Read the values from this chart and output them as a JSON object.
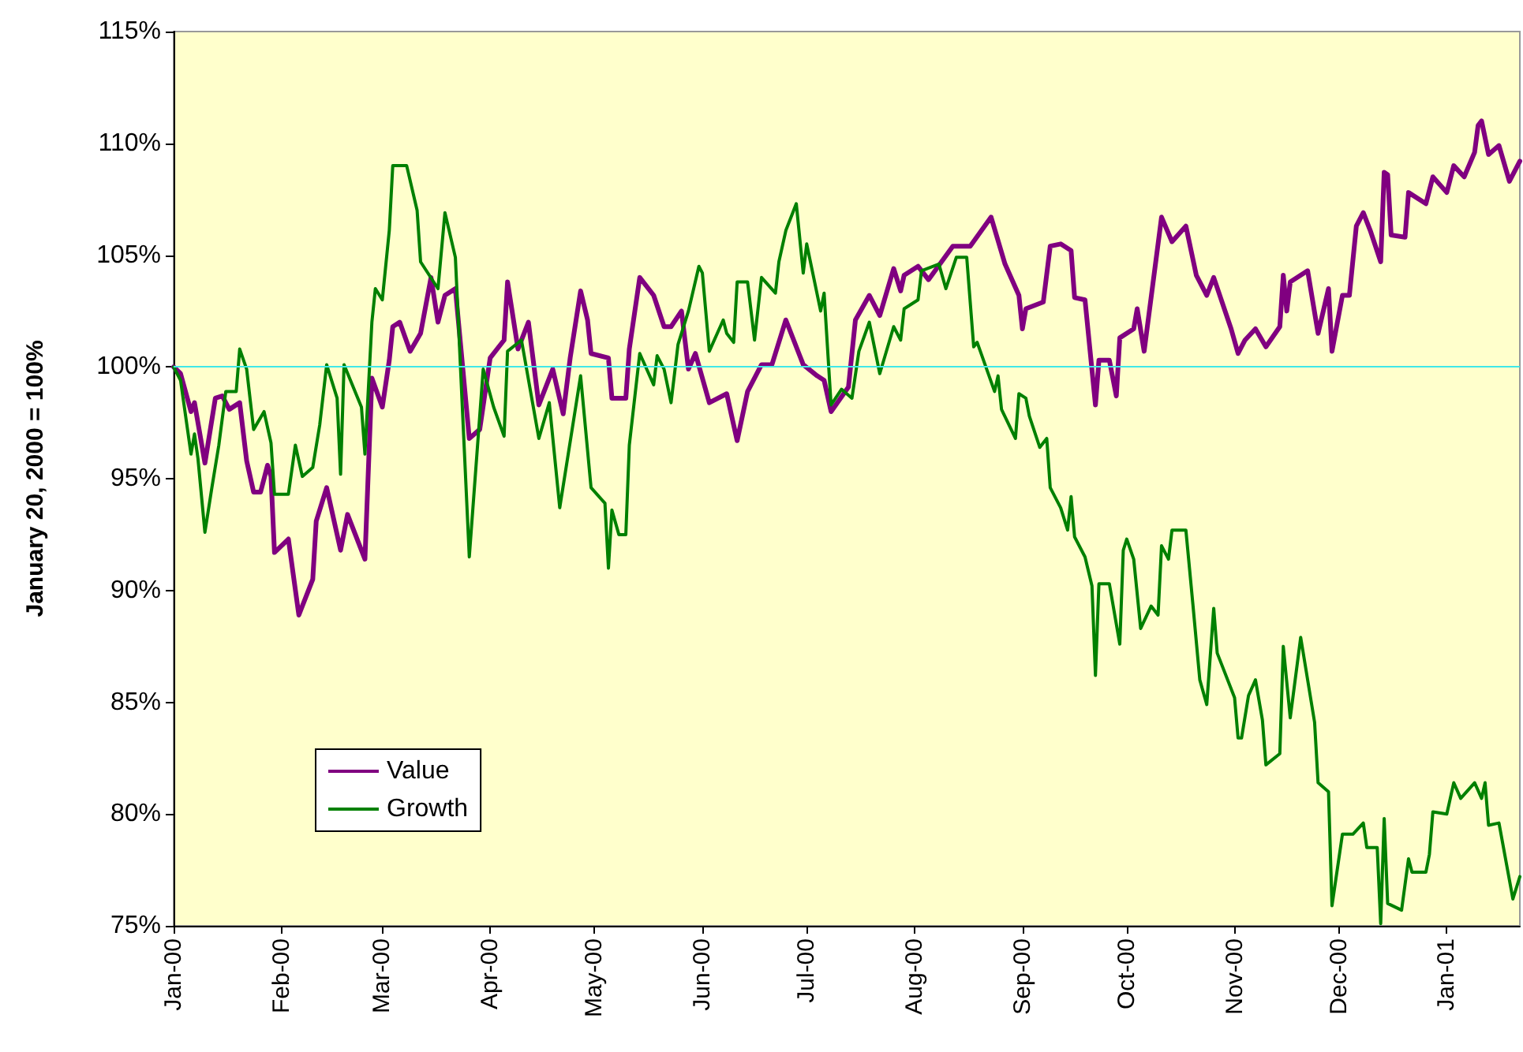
{
  "chart_data": {
    "type": "line",
    "ylabel": "January 20, 2000 = 100%",
    "xlim": [
      "2000-01-01",
      "2001-01-22"
    ],
    "xticks": [
      {
        "value": "2000-01-01",
        "label": "Jan-00"
      },
      {
        "value": "2000-02-01",
        "label": "Feb-00"
      },
      {
        "value": "2000-03-01",
        "label": "Mar-00"
      },
      {
        "value": "2000-04-01",
        "label": "Apr-00"
      },
      {
        "value": "2000-05-01",
        "label": "May-00"
      },
      {
        "value": "2000-06-01",
        "label": "Jun-00"
      },
      {
        "value": "2000-07-01",
        "label": "Jul-00"
      },
      {
        "value": "2000-08-01",
        "label": "Aug-00"
      },
      {
        "value": "2000-09-01",
        "label": "Sep-00"
      },
      {
        "value": "2000-10-01",
        "label": "Oct-00"
      },
      {
        "value": "2000-11-01",
        "label": "Nov-00"
      },
      {
        "value": "2000-12-01",
        "label": "Dec-00"
      },
      {
        "value": "2001-01-01",
        "label": "Jan-01"
      }
    ],
    "ylim": [
      75,
      115
    ],
    "yticks": [
      {
        "value": 75,
        "label": "75%"
      },
      {
        "value": 80,
        "label": "80%"
      },
      {
        "value": 85,
        "label": "85%"
      },
      {
        "value": 90,
        "label": "90%"
      },
      {
        "value": 95,
        "label": "95%"
      },
      {
        "value": 100,
        "label": "100%"
      },
      {
        "value": 105,
        "label": "105%"
      },
      {
        "value": 110,
        "label": "110%"
      },
      {
        "value": 115,
        "label": "115%"
      }
    ],
    "grid": false,
    "legend": "bottom left",
    "marker": "none",
    "line_style": "solid",
    "ref_lines": [
      {
        "axis": "y",
        "value": 100,
        "label": null,
        "color": "#40e8e8"
      }
    ],
    "series": [
      {
        "name": "Value",
        "color": "#800080",
        "x": [
          "2000-01-01",
          "2000-01-03",
          "2000-01-06",
          "2000-01-07",
          "2000-01-10",
          "2000-01-13",
          "2000-01-15",
          "2000-01-17",
          "2000-01-20",
          "2000-01-22",
          "2000-01-24",
          "2000-01-26",
          "2000-01-28",
          "2000-01-29",
          "2000-01-30",
          "2000-02-03",
          "2000-02-06",
          "2000-02-10",
          "2000-02-11",
          "2000-02-14",
          "2000-02-18",
          "2000-02-20",
          "2000-02-25",
          "2000-02-27",
          "2000-03-01",
          "2000-03-03",
          "2000-03-04",
          "2000-03-06",
          "2000-03-09",
          "2000-03-12",
          "2000-03-15",
          "2000-03-17",
          "2000-03-19",
          "2000-03-22",
          "2000-03-26",
          "2000-03-29",
          "2000-04-01",
          "2000-04-05",
          "2000-04-06",
          "2000-04-09",
          "2000-04-12",
          "2000-04-15",
          "2000-04-19",
          "2000-04-22",
          "2000-04-24",
          "2000-04-27",
          "2000-04-29",
          "2000-04-30",
          "2000-05-05",
          "2000-05-06",
          "2000-05-10",
          "2000-05-11",
          "2000-05-14",
          "2000-05-18",
          "2000-05-21",
          "2000-05-23",
          "2000-05-26",
          "2000-05-28",
          "2000-05-30",
          "2000-06-03",
          "2000-06-08",
          "2000-06-11",
          "2000-06-14",
          "2000-06-18",
          "2000-06-21",
          "2000-06-25",
          "2000-06-30",
          "2000-07-04",
          "2000-07-06",
          "2000-07-08",
          "2000-07-13",
          "2000-07-15",
          "2000-07-19",
          "2000-07-22",
          "2000-07-26",
          "2000-07-28",
          "2000-07-29",
          "2000-08-02",
          "2000-08-05",
          "2000-08-12",
          "2000-08-17",
          "2000-08-23",
          "2000-08-27",
          "2000-08-31",
          "2000-09-01",
          "2000-09-02",
          "2000-09-07",
          "2000-09-09",
          "2000-09-12",
          "2000-09-15",
          "2000-09-16",
          "2000-09-19",
          "2000-09-22",
          "2000-09-23",
          "2000-09-26",
          "2000-09-28",
          "2000-09-29",
          "2000-10-03",
          "2000-10-04",
          "2000-10-06",
          "2000-10-11",
          "2000-10-14",
          "2000-10-18",
          "2000-10-21",
          "2000-10-24",
          "2000-10-26",
          "2000-10-31",
          "2000-11-02",
          "2000-11-04",
          "2000-11-07",
          "2000-11-10",
          "2000-11-14",
          "2000-11-15",
          "2000-11-16",
          "2000-11-17",
          "2000-11-22",
          "2000-11-25",
          "2000-11-28",
          "2000-11-29",
          "2000-12-02",
          "2000-12-04",
          "2000-12-06",
          "2000-12-08",
          "2000-12-10",
          "2000-12-13",
          "2000-12-14",
          "2000-12-15",
          "2000-12-16",
          "2000-12-20",
          "2000-12-21",
          "2000-12-26",
          "2000-12-28",
          "2001-01-01",
          "2001-01-03",
          "2001-01-06",
          "2001-01-09",
          "2001-01-10",
          "2001-01-11",
          "2001-01-13",
          "2001-01-16",
          "2001-01-19",
          "2001-01-22"
        ],
        "values": [
          100,
          99.7,
          98.0,
          98.4,
          95.7,
          98.6,
          98.7,
          98.1,
          98.4,
          95.8,
          94.4,
          94.4,
          95.6,
          95.1,
          91.7,
          92.3,
          88.9,
          90.5,
          93.1,
          94.6,
          91.8,
          93.4,
          91.4,
          99.5,
          98.2,
          100.3,
          101.8,
          102.0,
          100.7,
          101.5,
          104.0,
          102.0,
          103.2,
          103.5,
          96.8,
          97.2,
          100.4,
          101.2,
          103.8,
          100.8,
          102.0,
          98.3,
          99.9,
          97.9,
          100.4,
          103.4,
          102.1,
          100.6,
          100.4,
          98.6,
          98.6,
          100.8,
          104.0,
          103.2,
          101.8,
          101.8,
          102.5,
          99.9,
          100.6,
          98.4,
          98.8,
          96.7,
          98.9,
          100.1,
          100.1,
          102.1,
          100.1,
          99.6,
          99.4,
          98.0,
          99.1,
          102.1,
          103.2,
          102.3,
          104.4,
          103.4,
          104.1,
          104.5,
          103.9,
          105.4,
          105.4,
          106.7,
          104.6,
          103.2,
          101.7,
          102.6,
          102.9,
          105.4,
          105.5,
          105.2,
          103.1,
          103.0,
          98.3,
          100.3,
          100.3,
          98.7,
          101.3,
          101.7,
          102.6,
          100.7,
          106.7,
          105.6,
          106.3,
          104.1,
          103.2,
          104.0,
          101.7,
          100.6,
          101.2,
          101.7,
          100.9,
          101.8,
          104.1,
          102.5,
          103.8,
          104.3,
          101.5,
          103.5,
          100.7,
          103.2,
          103.2,
          106.3,
          106.9,
          106.1,
          104.7,
          108.7,
          108.6,
          105.9,
          105.8,
          107.8,
          107.3,
          108.5,
          107.8,
          109.0,
          108.5,
          109.6,
          110.8,
          111.0,
          109.5,
          109.9,
          108.3,
          109.2
        ]
      },
      {
        "name": "Growth",
        "color": "#008000",
        "x": [
          "2000-01-01",
          "2000-01-03",
          "2000-01-06",
          "2000-01-07",
          "2000-01-08",
          "2000-01-10",
          "2000-01-12",
          "2000-01-14",
          "2000-01-16",
          "2000-01-19",
          "2000-01-20",
          "2000-01-22",
          "2000-01-24",
          "2000-01-27",
          "2000-01-29",
          "2000-01-30",
          "2000-02-03",
          "2000-02-05",
          "2000-02-07",
          "2000-02-10",
          "2000-02-12",
          "2000-02-14",
          "2000-02-17",
          "2000-02-18",
          "2000-02-19",
          "2000-02-24",
          "2000-02-25",
          "2000-02-27",
          "2000-02-28",
          "2000-03-01",
          "2000-03-03",
          "2000-03-04",
          "2000-03-08",
          "2000-03-11",
          "2000-03-12",
          "2000-03-17",
          "2000-03-19",
          "2000-03-22",
          "2000-03-26",
          "2000-03-30",
          "2000-04-02",
          "2000-04-05",
          "2000-04-06",
          "2000-04-10",
          "2000-04-15",
          "2000-04-18",
          "2000-04-21",
          "2000-04-27",
          "2000-04-30",
          "2000-05-04",
          "2000-05-05",
          "2000-05-06",
          "2000-05-08",
          "2000-05-10",
          "2000-05-11",
          "2000-05-14",
          "2000-05-18",
          "2000-05-19",
          "2000-05-21",
          "2000-05-23",
          "2000-05-25",
          "2000-05-28",
          "2000-05-31",
          "2000-06-01",
          "2000-06-03",
          "2000-06-07",
          "2000-06-08",
          "2000-06-10",
          "2000-06-11",
          "2000-06-14",
          "2000-06-16",
          "2000-06-18",
          "2000-06-22",
          "2000-06-23",
          "2000-06-25",
          "2000-06-28",
          "2000-06-30",
          "2000-07-01",
          "2000-07-05",
          "2000-07-06",
          "2000-07-08",
          "2000-07-11",
          "2000-07-14",
          "2000-07-16",
          "2000-07-19",
          "2000-07-22",
          "2000-07-26",
          "2000-07-28",
          "2000-07-29",
          "2000-08-02",
          "2000-08-03",
          "2000-08-08",
          "2000-08-10",
          "2000-08-13",
          "2000-08-16",
          "2000-08-18",
          "2000-08-19",
          "2000-08-24",
          "2000-08-25",
          "2000-08-26",
          "2000-08-30",
          "2000-08-31",
          "2000-09-02",
          "2000-09-03",
          "2000-09-06",
          "2000-09-08",
          "2000-09-09",
          "2000-09-12",
          "2000-09-14",
          "2000-09-15",
          "2000-09-16",
          "2000-09-19",
          "2000-09-21",
          "2000-09-22",
          "2000-09-23",
          "2000-09-26",
          "2000-09-29",
          "2000-09-30",
          "2000-10-01",
          "2000-10-03",
          "2000-10-05",
          "2000-10-08",
          "2000-10-10",
          "2000-10-11",
          "2000-10-13",
          "2000-10-14",
          "2000-10-18",
          "2000-10-20",
          "2000-10-22",
          "2000-10-24",
          "2000-10-26",
          "2000-10-27",
          "2000-11-01",
          "2000-11-02",
          "2000-11-03",
          "2000-11-05",
          "2000-11-07",
          "2000-11-09",
          "2000-11-10",
          "2000-11-14",
          "2000-11-15",
          "2000-11-17",
          "2000-11-20",
          "2000-11-24",
          "2000-11-25",
          "2000-11-28",
          "2000-11-29",
          "2000-12-02",
          "2000-12-05",
          "2000-12-08",
          "2000-12-09",
          "2000-12-12",
          "2000-12-13",
          "2000-12-14",
          "2000-12-15",
          "2000-12-19",
          "2000-12-21",
          "2000-12-22",
          "2000-12-26",
          "2000-12-27",
          "2000-12-28",
          "2001-01-01",
          "2001-01-03",
          "2001-01-05",
          "2001-01-09",
          "2001-01-11",
          "2001-01-12",
          "2001-01-13",
          "2001-01-16",
          "2001-01-20",
          "2001-01-22"
        ],
        "values": [
          100,
          99.4,
          96.1,
          97.0,
          95.9,
          92.6,
          94.6,
          96.5,
          98.9,
          98.9,
          100.8,
          99.9,
          97.2,
          98.0,
          96.6,
          94.3,
          94.3,
          96.5,
          95.1,
          95.5,
          97.4,
          100.1,
          98.6,
          95.2,
          100.1,
          98.2,
          96.1,
          102.0,
          103.5,
          103.0,
          106.1,
          109.0,
          109.0,
          107.0,
          104.7,
          103.5,
          106.9,
          104.9,
          91.5,
          99.9,
          98.2,
          96.9,
          100.7,
          101.2,
          96.8,
          98.4,
          93.7,
          99.6,
          94.6,
          93.9,
          91.0,
          93.6,
          92.5,
          92.5,
          96.5,
          100.6,
          99.2,
          100.5,
          99.9,
          98.4,
          101.0,
          102.5,
          104.5,
          104.2,
          100.7,
          102.1,
          101.5,
          101.1,
          103.8,
          103.8,
          101.2,
          104.0,
          103.3,
          104.7,
          106.1,
          107.3,
          104.2,
          105.5,
          102.5,
          103.3,
          98.3,
          99.0,
          98.6,
          100.7,
          102.0,
          99.7,
          101.8,
          101.2,
          102.6,
          103.0,
          104.3,
          104.6,
          103.5,
          104.9,
          104.9,
          100.9,
          101.1,
          98.9,
          99.6,
          98.1,
          96.8,
          98.8,
          98.6,
          97.8,
          96.4,
          96.8,
          94.6,
          93.7,
          92.7,
          94.2,
          92.4,
          91.5,
          90.2,
          86.2,
          90.3,
          90.3,
          87.6,
          91.8,
          92.3,
          91.4,
          88.3,
          89.3,
          88.9,
          92.0,
          91.4,
          92.7,
          92.7,
          89.4,
          86.0,
          84.9,
          89.2,
          87.2,
          85.2,
          83.4,
          83.4,
          85.3,
          86.0,
          84.2,
          82.2,
          82.7,
          87.5,
          84.3,
          87.9,
          84.1,
          81.4,
          81.0,
          75.9,
          79.1,
          79.1,
          79.6,
          78.5,
          78.5,
          75.1,
          79.8,
          76.0,
          75.7,
          78.0,
          77.4,
          77.4,
          78.2,
          80.1,
          80.0,
          81.4,
          80.7,
          81.4,
          80.7,
          81.4,
          79.5,
          79.6,
          76.2,
          77.2
        ]
      }
    ]
  }
}
